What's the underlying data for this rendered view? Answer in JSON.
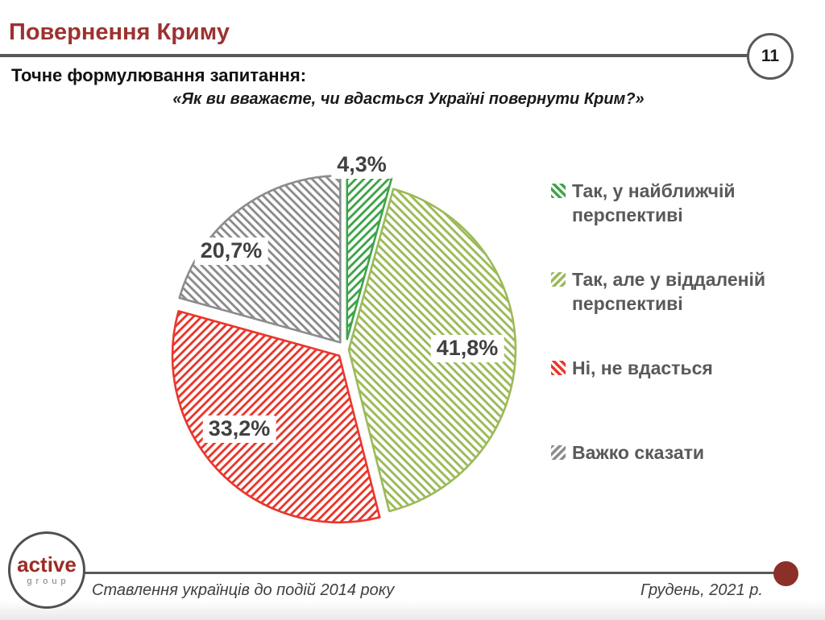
{
  "slide": {
    "title": "Повернення Криму",
    "page_number": "11",
    "subtitle": "Точне формулювання запитання:",
    "question": "«Як ви вважаєте, чи вдасться Україні повернути Крим?»"
  },
  "chart_data": {
    "type": "pie",
    "title": "Як ви вважаєте, чи вдасться Україні повернути Крим?",
    "categories": [
      "Так, у найближчій перспективі",
      "Так, але у віддаленій перспективі",
      "Ні, не вдасться",
      "Важко сказати"
    ],
    "values": [
      4.3,
      41.8,
      33.2,
      20.7
    ],
    "value_labels": [
      "4,3%",
      "41,8%",
      "33,2%",
      "20,7%"
    ],
    "colors": [
      "#3fa44a",
      "#9bba59",
      "#ea372c",
      "#8c8c8c"
    ],
    "hatch_directions": [
      "\\",
      "/",
      "\\",
      "/"
    ],
    "style": "exploded, diagonal hatch fill, white background",
    "start_angle": "12 o'clock, clockwise",
    "legend_position": "right"
  },
  "footer": {
    "logo_primary": "active",
    "logo_secondary": "group",
    "report_title": "Ставлення українців до подій 2014 року",
    "date": "Грудень, 2021 р."
  }
}
